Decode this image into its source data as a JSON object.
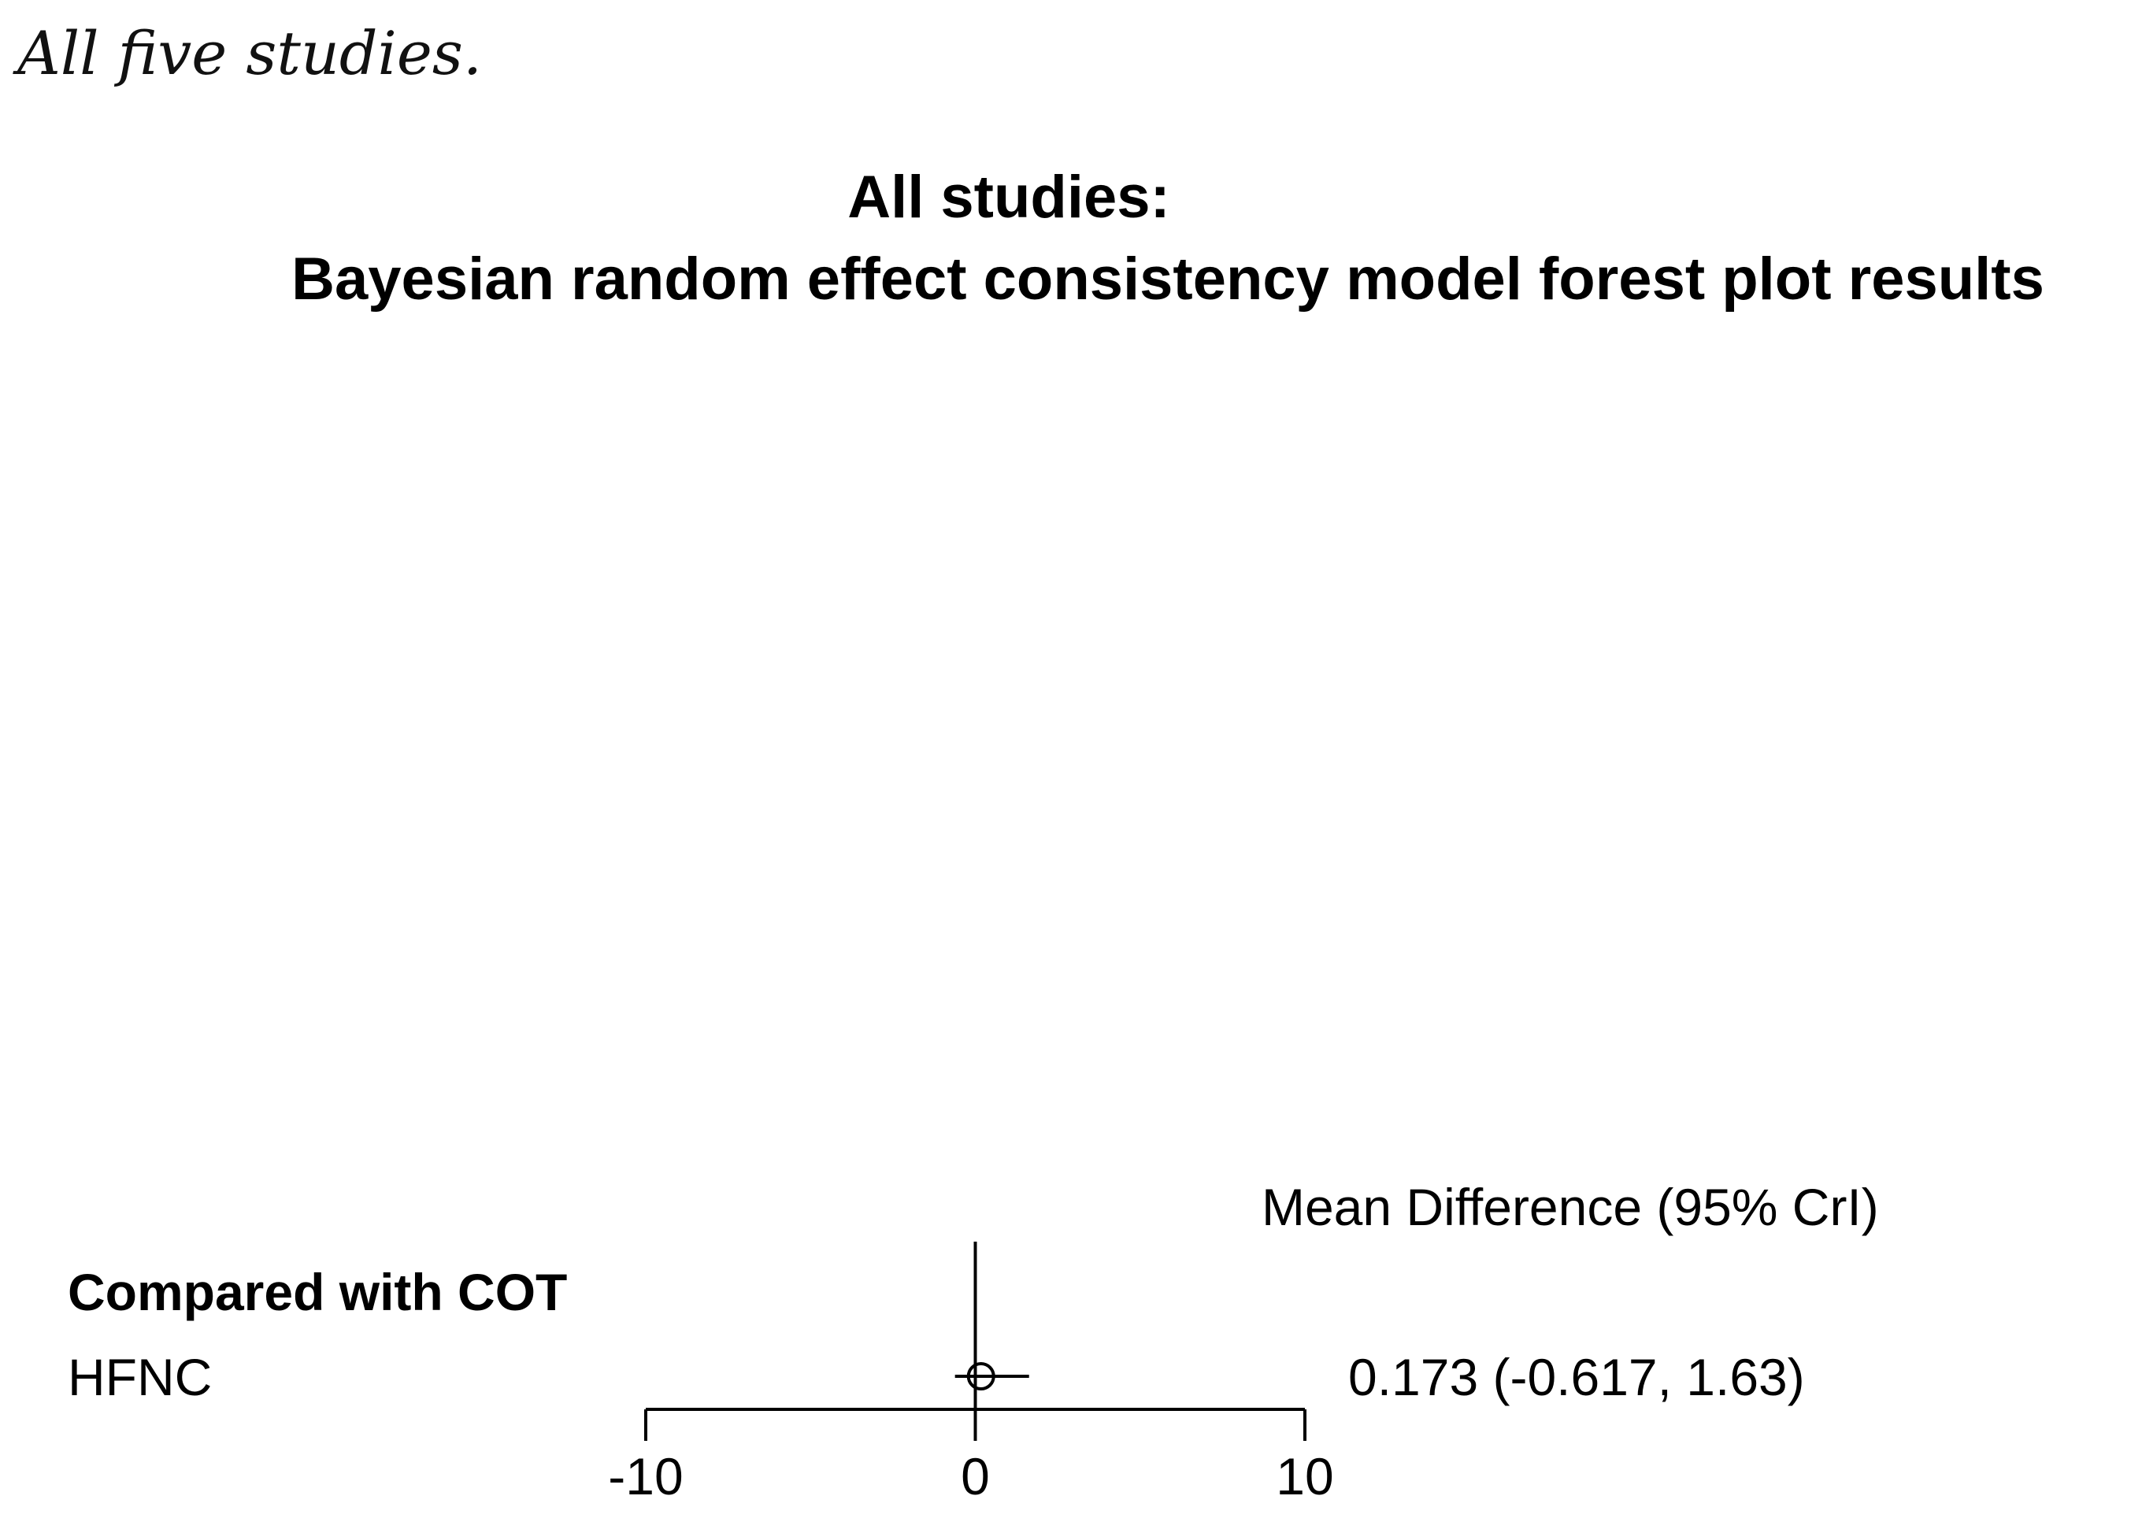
{
  "caption": "All five studies.",
  "chart_data": {
    "type": "forest",
    "title_line1": "All studies:",
    "title_line2": "Bayesian random effect consistency model forest plot results",
    "column_header": "Mean Difference (95% CrI)",
    "group_label": "Compared with COT",
    "rows": [
      {
        "label": "HFNC",
        "estimate": 0.173,
        "lower": -0.617,
        "upper": 1.63,
        "summary": "0.173 (-0.617, 1.63)"
      }
    ],
    "reference_line": 0,
    "xlim": [
      -10,
      10
    ],
    "ticks": [
      {
        "value": -10,
        "label": "-10"
      },
      {
        "value": 0,
        "label": "0"
      },
      {
        "value": 10,
        "label": "10"
      }
    ]
  }
}
